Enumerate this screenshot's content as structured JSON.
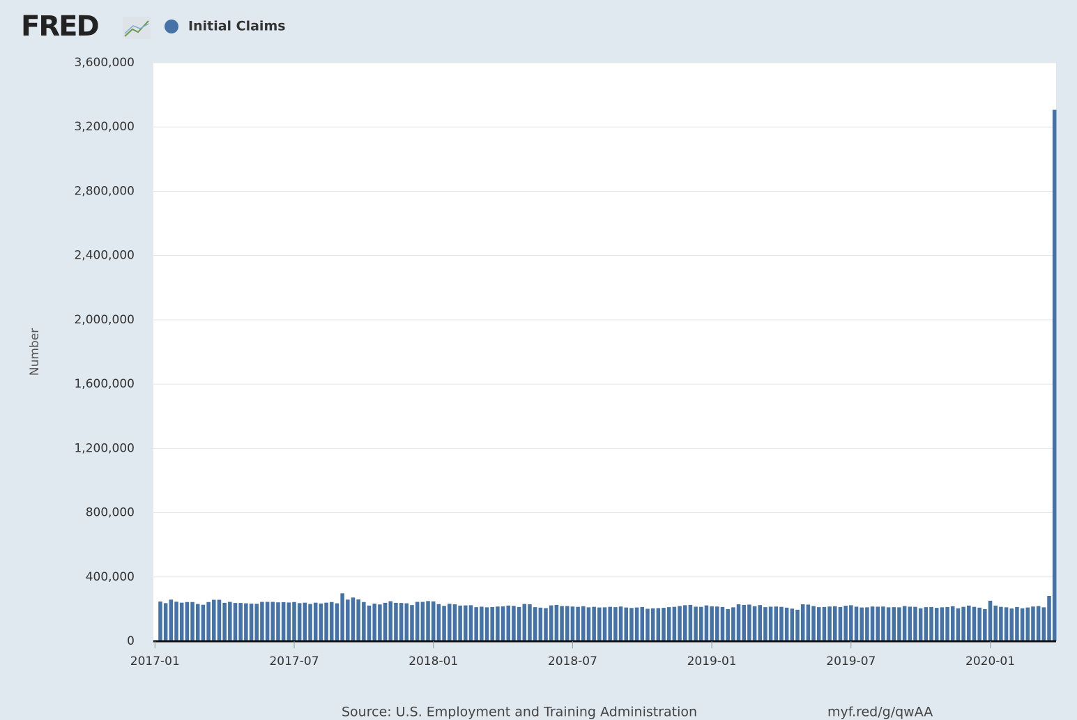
{
  "header": {
    "logo": "FRED"
  },
  "chart_data": {
    "type": "bar",
    "y_label": "Number",
    "source": "Source: U.S. Employment and Training Administration",
    "link": "myf.red/g/qwAA",
    "series": [
      {
        "name": "Initial Claims",
        "color": "#4572a7",
        "x": [
          1,
          2,
          3,
          4,
          5,
          6,
          7,
          8,
          9,
          10,
          11,
          12,
          13,
          14,
          15,
          16,
          17,
          18,
          19,
          20,
          21,
          22,
          23,
          24,
          25,
          26,
          27,
          28,
          29,
          30,
          31,
          32,
          33,
          34,
          35,
          36,
          37,
          38,
          39,
          40,
          41,
          42,
          43,
          44,
          45,
          46,
          47,
          48,
          49,
          50,
          51,
          52,
          53,
          54,
          55,
          56,
          57,
          58,
          59,
          60,
          61,
          62,
          63,
          64,
          65,
          66,
          67,
          68,
          69,
          70,
          71,
          72,
          73,
          74,
          75,
          76,
          77,
          78,
          79,
          80,
          81,
          82,
          83,
          84,
          85,
          86,
          87,
          88,
          89,
          90,
          91,
          92,
          93,
          94,
          95,
          96,
          97,
          98,
          99,
          100,
          101,
          102,
          103,
          104,
          105,
          106,
          107,
          108,
          109,
          110,
          111,
          112,
          113,
          114,
          115,
          116,
          117,
          118,
          119,
          120,
          121,
          122,
          123,
          124,
          125,
          126,
          127,
          128,
          129,
          130,
          131,
          132,
          133,
          134,
          135,
          136,
          137,
          138,
          139,
          140,
          141,
          142,
          143,
          144,
          145,
          146,
          147,
          148,
          149,
          150,
          151,
          152,
          153,
          154,
          155,
          156,
          157,
          158,
          159,
          160,
          161,
          162,
          163,
          164,
          165,
          166,
          167,
          168
        ],
        "values": [
          247000,
          237000,
          259000,
          246000,
          240000,
          244000,
          244000,
          232000,
          227000,
          244000,
          258000,
          258000,
          239000,
          245000,
          238000,
          238000,
          236000,
          234000,
          233000,
          245000,
          245000,
          245000,
          242000,
          243000,
          241000,
          244000,
          237000,
          240000,
          232000,
          240000,
          235000,
          240000,
          244000,
          236000,
          298000,
          259000,
          272000,
          260000,
          244000,
          222000,
          234000,
          229000,
          239000,
          249000,
          239000,
          238000,
          236000,
          225000,
          245000,
          245000,
          250000,
          248000,
          231000,
          220000,
          233000,
          230000,
          222000,
          223000,
          224000,
          212000,
          215000,
          211000,
          213000,
          216000,
          217000,
          222000,
          220000,
          213000,
          232000,
          230000,
          212000,
          209000,
          206000,
          223000,
          226000,
          219000,
          219000,
          216000,
          214000,
          218000,
          211000,
          214000,
          210000,
          211000,
          214000,
          212000,
          216000,
          210000,
          207000,
          210000,
          213000,
          202000,
          205000,
          206000,
          208000,
          212000,
          214000,
          219000,
          224000,
          226000,
          215000,
          214000,
          223000,
          217000,
          216000,
          213000,
          200000,
          211000,
          230000,
          226000,
          228000,
          218000,
          225000,
          212000,
          215000,
          216000,
          214000,
          209000,
          203000,
          196000,
          230000,
          228000,
          219000,
          212000,
          213000,
          216000,
          218000,
          213000,
          221000,
          224000,
          215000,
          210000,
          211000,
          216000,
          215000,
          216000,
          211000,
          212000,
          211000,
          219000,
          215000,
          214000,
          205000,
          212000,
          213000,
          208000,
          211000,
          213000,
          218000,
          205000,
          214000,
          222000,
          214000,
          209000,
          200000,
          252000,
          222000,
          214000,
          211000,
          204000,
          213000,
          205000,
          210000,
          216000,
          219000,
          211000,
          282000,
          3307000
        ]
      }
    ],
    "xlim": [
      -0.3,
      168.3
    ],
    "xticks": [
      {
        "value": 0,
        "label": "2017-01"
      },
      {
        "value": 26,
        "label": "2017-07"
      },
      {
        "value": 52,
        "label": "2018-01"
      },
      {
        "value": 78,
        "label": "2018-07"
      },
      {
        "value": 104,
        "label": "2019-01"
      },
      {
        "value": 130,
        "label": "2019-07"
      },
      {
        "value": 156,
        "label": "2020-01"
      }
    ],
    "ylim": [
      0,
      3600000
    ],
    "yticks": [
      0,
      {
        "value": 400000,
        "label": "400,000"
      },
      {
        "value": 800000,
        "label": "800,000"
      },
      {
        "value": 1200000,
        "label": "1,200,000"
      },
      {
        "value": 1600000,
        "label": "1,600,000"
      },
      {
        "value": 2000000,
        "label": "2,000,000"
      },
      {
        "value": 2400000,
        "label": "2,400,000"
      },
      {
        "value": 2800000,
        "label": "2,800,000"
      },
      {
        "value": 3200000,
        "label": "3,200,000"
      },
      {
        "value": 3600000,
        "label": "3,600,000"
      }
    ],
    "grid": true
  }
}
